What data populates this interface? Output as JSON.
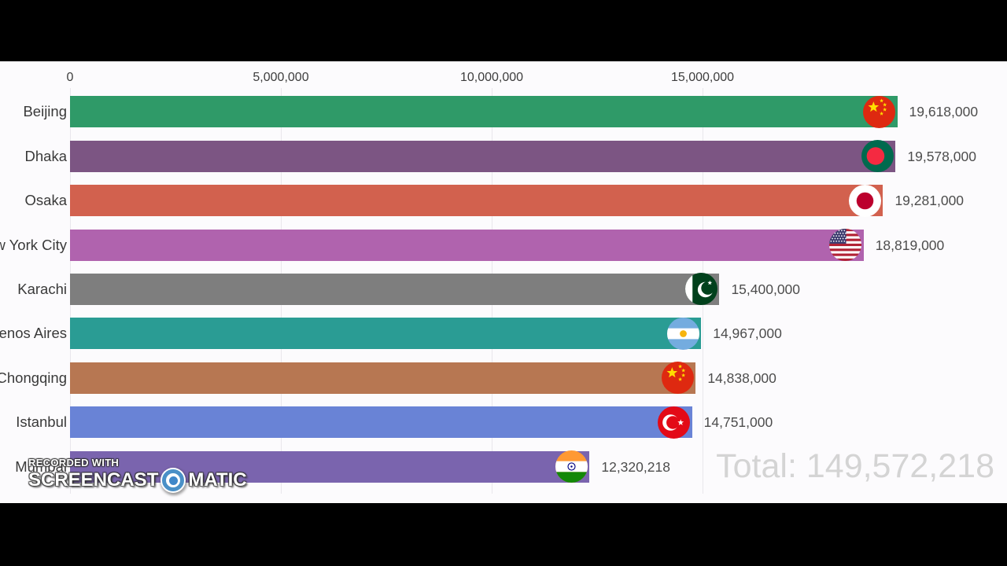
{
  "watermark": {
    "line1": "RECORDED WITH",
    "brand_left": "SCREENCAST",
    "brand_right": "MATIC"
  },
  "colors": {
    "letterbox": "#000000",
    "chart_background": "#fcfbfd",
    "gridline": "#e9e7ec",
    "total_text": "#d4d4d4",
    "label_text": "#3a3a3a",
    "value_text": "#4d4d4d"
  },
  "chart_data": {
    "type": "bar",
    "orientation": "horizontal",
    "title": "",
    "xlabel": "",
    "ylabel": "",
    "grid": true,
    "axis_range": [
      0,
      22200000
    ],
    "x_ticks": [
      {
        "label": "0",
        "value": 0
      },
      {
        "label": "5,000,000",
        "value": 5000000
      },
      {
        "label": "10,000,000",
        "value": 10000000
      },
      {
        "label": "15,000,000",
        "value": 15000000
      }
    ],
    "categories": [
      "Beijing",
      "Dhaka",
      "Osaka",
      "New York City",
      "Karachi",
      "Buenos Aires",
      "Chongqing",
      "Istanbul",
      "Mumbai"
    ],
    "values": [
      19618000,
      19578000,
      19281000,
      18819000,
      15400000,
      14967000,
      14838000,
      14751000,
      12320218
    ],
    "value_labels": [
      "19,618,000",
      "19,578,000",
      "19,281,000",
      "18,819,000",
      "15,400,000",
      "14,967,000",
      "14,838,000",
      "14,751,000",
      "12,320,218"
    ],
    "bar_colors": [
      "#2f9a68",
      "#7c5583",
      "#d2614e",
      "#b063ae",
      "#7e7e7e",
      "#2a9c94",
      "#b77752",
      "#6983d6",
      "#7a64ae"
    ],
    "flags": [
      "china",
      "bangladesh",
      "japan",
      "usa",
      "pakistan",
      "argentina",
      "china",
      "turkey",
      "india"
    ],
    "total_label": "Total: 149,572,218"
  }
}
